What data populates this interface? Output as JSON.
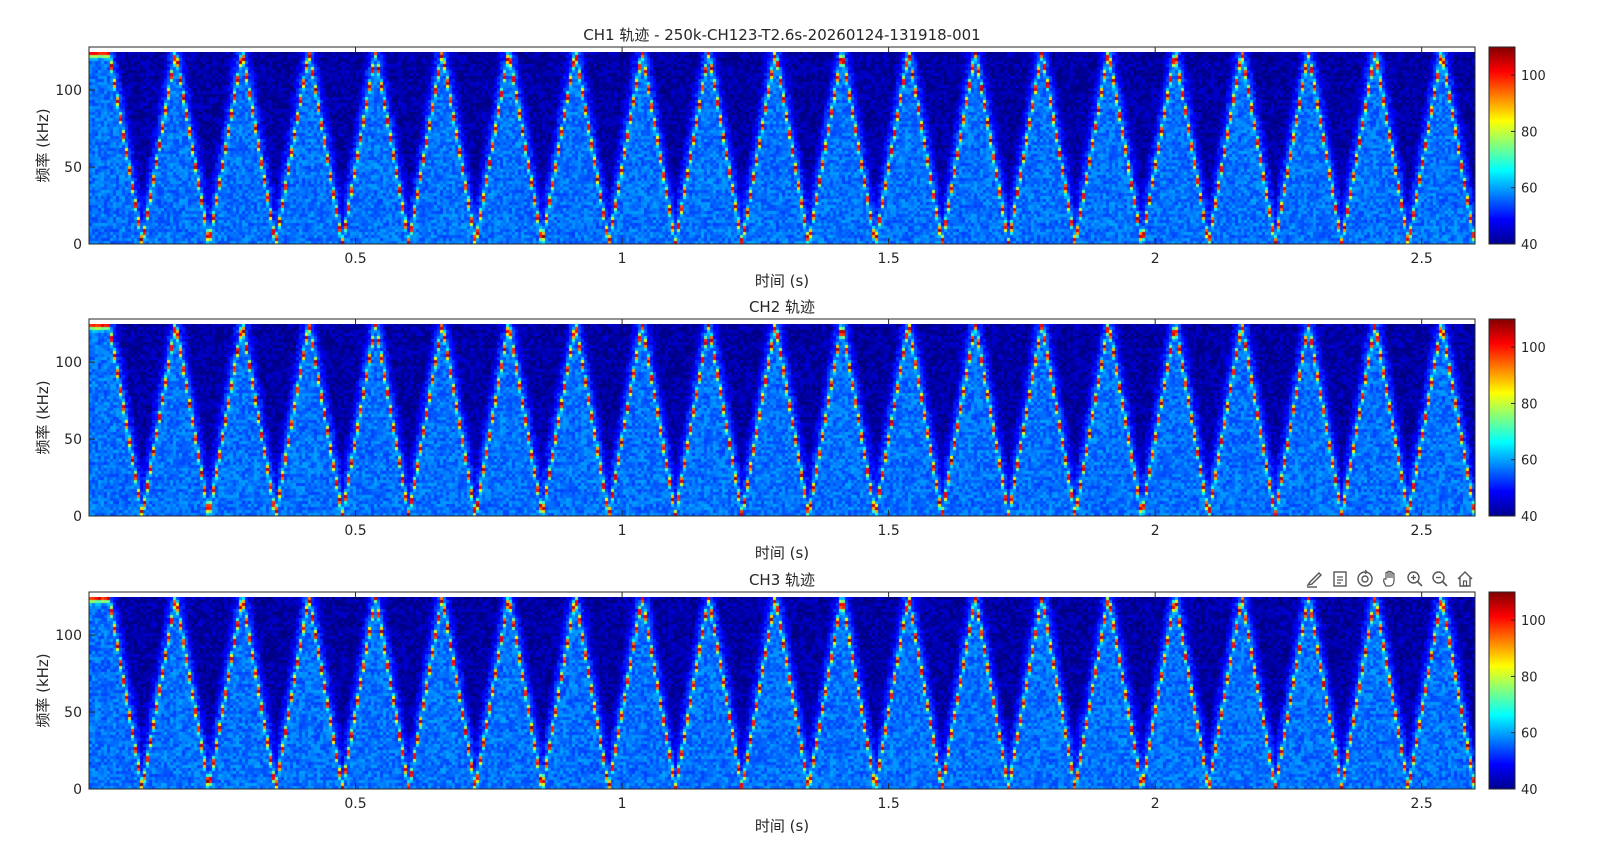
{
  "figure": {
    "colormap": "jet",
    "background": "#ffffff",
    "axes_color": "#262626"
  },
  "toolbar": {
    "buttons": [
      {
        "icon": "brush-icon",
        "label": "Brush data"
      },
      {
        "icon": "datatip-icon",
        "label": "Data tips"
      },
      {
        "icon": "rotate-icon",
        "label": "Rotate 3D"
      },
      {
        "icon": "pan-icon",
        "label": "Pan"
      },
      {
        "icon": "zoom-in-icon",
        "label": "Zoom in"
      },
      {
        "icon": "zoom-out-icon",
        "label": "Zoom out"
      },
      {
        "icon": "home-icon",
        "label": "Restore view"
      }
    ]
  },
  "chart_data": [
    {
      "type": "heatmap",
      "title": "CH1 轨迹 - 250k-CH123-T2.6s-20260124-131918-001",
      "xlabel": "时间 (s)",
      "ylabel": "频率 (kHz)",
      "xlim": [
        0,
        2.6
      ],
      "ylim": [
        0,
        128
      ],
      "xticks": [
        0.5,
        1,
        1.5,
        2,
        2.5
      ],
      "xticklabels": [
        "0.5",
        "1",
        "1.5",
        "2",
        "2.5"
      ],
      "yticks": [
        0,
        50,
        100
      ],
      "yticklabels": [
        "0",
        "50",
        "100"
      ],
      "colorbar": {
        "range": [
          40,
          110
        ],
        "ticks": [
          40,
          60,
          80,
          100
        ],
        "ticklabels": [
          "40",
          "60",
          "80",
          "100"
        ]
      },
      "sweep": {
        "f_min_khz": 0,
        "f_max_khz": 125,
        "minima_s": [
          0.1,
          0.225,
          0.35,
          0.475,
          0.6,
          0.725,
          0.85,
          0.975,
          1.1,
          1.225,
          1.35,
          1.475,
          1.6,
          1.725,
          1.85,
          1.975,
          2.1,
          2.225,
          2.35,
          2.475,
          2.6
        ],
        "peak_level": 100,
        "background_level": 55,
        "grid": false
      }
    },
    {
      "type": "heatmap",
      "title": "CH2 轨迹",
      "xlabel": "时间 (s)",
      "ylabel": "频率 (kHz)",
      "xlim": [
        0,
        2.6
      ],
      "ylim": [
        0,
        128
      ],
      "xticks": [
        0.5,
        1,
        1.5,
        2,
        2.5
      ],
      "xticklabels": [
        "0.5",
        "1",
        "1.5",
        "2",
        "2.5"
      ],
      "yticks": [
        0,
        50,
        100
      ],
      "yticklabels": [
        "0",
        "50",
        "100"
      ],
      "colorbar": {
        "range": [
          40,
          110
        ],
        "ticks": [
          40,
          60,
          80,
          100
        ],
        "ticklabels": [
          "40",
          "60",
          "80",
          "100"
        ]
      },
      "sweep": {
        "f_min_khz": 0,
        "f_max_khz": 125,
        "minima_s": [
          0.1,
          0.225,
          0.35,
          0.475,
          0.6,
          0.725,
          0.85,
          0.975,
          1.1,
          1.225,
          1.35,
          1.475,
          1.6,
          1.725,
          1.85,
          1.975,
          2.1,
          2.225,
          2.35,
          2.475,
          2.6
        ],
        "peak_level": 100,
        "background_level": 55,
        "grid": false
      }
    },
    {
      "type": "heatmap",
      "title": "CH3 轨迹",
      "xlabel": "时间 (s)",
      "ylabel": "频率 (kHz)",
      "xlim": [
        0,
        2.6
      ],
      "ylim": [
        0,
        128
      ],
      "xticks": [
        0.5,
        1,
        1.5,
        2,
        2.5
      ],
      "xticklabels": [
        "0.5",
        "1",
        "1.5",
        "2",
        "2.5"
      ],
      "yticks": [
        0,
        50,
        100
      ],
      "yticklabels": [
        "0",
        "50",
        "100"
      ],
      "colorbar": {
        "range": [
          40,
          110
        ],
        "ticks": [
          40,
          60,
          80,
          100
        ],
        "ticklabels": [
          "40",
          "60",
          "80",
          "100"
        ]
      },
      "sweep": {
        "f_min_khz": 0,
        "f_max_khz": 125,
        "minima_s": [
          0.1,
          0.225,
          0.35,
          0.475,
          0.6,
          0.725,
          0.85,
          0.975,
          1.1,
          1.225,
          1.35,
          1.475,
          1.6,
          1.725,
          1.85,
          1.975,
          2.1,
          2.225,
          2.35,
          2.475,
          2.6
        ],
        "peak_level": 100,
        "background_level": 55,
        "grid": false
      }
    }
  ]
}
